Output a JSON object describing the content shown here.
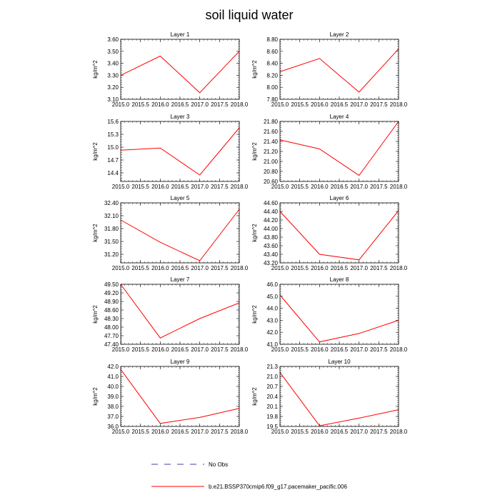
{
  "title": "soil liquid water",
  "colors": {
    "model_line": "#ff0000",
    "obs_line": "#00008b",
    "axis": "#000000"
  },
  "legend": {
    "obs_label": "No Obs",
    "model_label": "b.e21.BSSP370cmip6.f09_g17.pacemaker_pacific.006"
  },
  "chart_data": [
    {
      "type": "line",
      "title": "Layer 1",
      "ylabel": "kg/m^2",
      "x": [
        2015.0,
        2016.0,
        2017.0,
        2018.0
      ],
      "values": [
        3.3,
        3.46,
        3.155,
        3.5
      ],
      "xlim": [
        2015.0,
        2018.0
      ],
      "ylim": [
        3.1,
        3.6
      ],
      "xticks": [
        "2015.0",
        "2015.5",
        "2016.0",
        "2016.5",
        "2017.0",
        "2017.5",
        "2018.0"
      ],
      "yticks": [
        "3.10",
        "3.20",
        "3.30",
        "3.40",
        "3.50",
        "3.60"
      ]
    },
    {
      "type": "line",
      "title": "Layer 2",
      "ylabel": "kg/m^2",
      "x": [
        2015.0,
        2016.0,
        2017.0,
        2018.0
      ],
      "values": [
        8.26,
        8.48,
        7.92,
        8.64
      ],
      "xlim": [
        2015.0,
        2018.0
      ],
      "ylim": [
        7.8,
        8.8
      ],
      "xticks": [
        "2015.0",
        "2015.5",
        "2016.0",
        "2016.5",
        "2017.0",
        "2017.5",
        "2018.0"
      ],
      "yticks": [
        "7.80",
        "8.00",
        "8.20",
        "8.40",
        "8.60",
        "8.80"
      ]
    },
    {
      "type": "line",
      "title": "Layer 3",
      "ylabel": "kg/m^2",
      "x": [
        2015.0,
        2016.0,
        2017.0,
        2018.0
      ],
      "values": [
        14.93,
        14.98,
        14.35,
        15.45
      ],
      "xlim": [
        2015.0,
        2018.0
      ],
      "ylim": [
        14.2,
        15.6
      ],
      "xticks": [
        "2015.0",
        "2015.5",
        "2016.0",
        "2016.5",
        "2017.0",
        "2017.5",
        "2018.0"
      ],
      "yticks": [
        "14.4",
        "14.7",
        "15.0",
        "15.3",
        "15.6"
      ]
    },
    {
      "type": "line",
      "title": "Layer 4",
      "ylabel": "kg/m^2",
      "x": [
        2015.0,
        2016.0,
        2017.0,
        2018.0
      ],
      "values": [
        21.43,
        21.25,
        20.72,
        21.8
      ],
      "xlim": [
        2015.0,
        2018.0
      ],
      "ylim": [
        20.6,
        21.8
      ],
      "xticks": [
        "2015.0",
        "2015.5",
        "2016.0",
        "2016.5",
        "2017.0",
        "2017.5",
        "2018.0"
      ],
      "yticks": [
        "20.60",
        "20.80",
        "21.00",
        "21.20",
        "21.40",
        "21.60",
        "21.80"
      ]
    },
    {
      "type": "line",
      "title": "Layer 5",
      "ylabel": "kg/m^2",
      "x": [
        2015.0,
        2016.0,
        2017.0,
        2018.0
      ],
      "values": [
        32.0,
        31.48,
        31.05,
        32.25
      ],
      "xlim": [
        2015.0,
        2018.0
      ],
      "ylim": [
        31.0,
        32.4
      ],
      "xticks": [
        "2015.0",
        "2015.5",
        "2016.0",
        "2016.5",
        "2017.0",
        "2017.5",
        "2018.0"
      ],
      "yticks": [
        "31.20",
        "31.50",
        "31.80",
        "32.10",
        "32.40"
      ]
    },
    {
      "type": "line",
      "title": "Layer 6",
      "ylabel": "kg/m^2",
      "x": [
        2015.0,
        2016.0,
        2017.0,
        2018.0
      ],
      "values": [
        44.4,
        43.4,
        43.27,
        44.42
      ],
      "xlim": [
        2015.0,
        2018.0
      ],
      "ylim": [
        43.2,
        44.6
      ],
      "xticks": [
        "2015.0",
        "2015.5",
        "2016.0",
        "2016.5",
        "2017.0",
        "2017.5",
        "2018.0"
      ],
      "yticks": [
        "43.20",
        "43.40",
        "43.60",
        "43.80",
        "44.00",
        "44.20",
        "44.40",
        "44.60"
      ]
    },
    {
      "type": "line",
      "title": "Layer 7",
      "ylabel": "kg/m^2",
      "x": [
        2015.0,
        2016.0,
        2017.0,
        2018.0
      ],
      "values": [
        49.5,
        47.62,
        48.3,
        48.85
      ],
      "xlim": [
        2015.0,
        2018.0
      ],
      "ylim": [
        47.4,
        49.5
      ],
      "xticks": [
        "2015.0",
        "2015.5",
        "2016.0",
        "2016.5",
        "2017.0",
        "2017.5",
        "2018.0"
      ],
      "yticks": [
        "47.40",
        "47.70",
        "48.00",
        "48.30",
        "48.60",
        "48.90",
        "49.20",
        "49.50"
      ]
    },
    {
      "type": "line",
      "title": "Layer 8",
      "ylabel": "kg/m^2",
      "x": [
        2015.0,
        2016.0,
        2017.0,
        2018.0
      ],
      "values": [
        45.1,
        41.2,
        41.9,
        43.0
      ],
      "xlim": [
        2015.0,
        2018.0
      ],
      "ylim": [
        41.0,
        46.0
      ],
      "xticks": [
        "2015.0",
        "2015.5",
        "2016.0",
        "2016.5",
        "2017.0",
        "2017.5",
        "2018.0"
      ],
      "yticks": [
        "41.0",
        "42.0",
        "43.0",
        "44.0",
        "45.0",
        "46.0"
      ]
    },
    {
      "type": "line",
      "title": "Layer 9",
      "ylabel": "kg/m^2",
      "x": [
        2015.0,
        2016.0,
        2017.0,
        2018.0
      ],
      "values": [
        41.7,
        36.3,
        36.9,
        37.8
      ],
      "xlim": [
        2015.0,
        2018.0
      ],
      "ylim": [
        36.0,
        42.0
      ],
      "xticks": [
        "2015.0",
        "2015.5",
        "2016.0",
        "2016.5",
        "2017.0",
        "2017.5",
        "2018.0"
      ],
      "yticks": [
        "36.0",
        "37.0",
        "38.0",
        "39.0",
        "40.0",
        "41.0",
        "42.0"
      ]
    },
    {
      "type": "line",
      "title": "Layer 10",
      "ylabel": "kg/m^2",
      "x": [
        2015.0,
        2016.0,
        2017.0,
        2018.0
      ],
      "values": [
        21.12,
        19.52,
        19.75,
        20.0
      ],
      "xlim": [
        2015.0,
        2018.0
      ],
      "ylim": [
        19.5,
        21.3
      ],
      "xticks": [
        "2015.0",
        "2015.5",
        "2016.0",
        "2016.5",
        "2017.0",
        "2017.5",
        "2018.0"
      ],
      "yticks": [
        "19.5",
        "19.8",
        "20.1",
        "20.4",
        "20.7",
        "21.0",
        "21.3"
      ]
    }
  ]
}
